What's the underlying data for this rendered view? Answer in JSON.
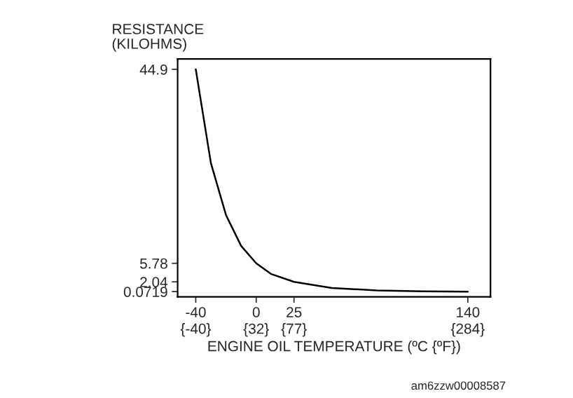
{
  "chart_data": {
    "type": "line",
    "ylabel": "RESISTANCE\n(KILOHMS)",
    "xlabel": "ENGINE OIL TEMPERATURE (ºC {ºF})",
    "x": [
      -40,
      -30,
      -20,
      -10,
      0,
      10,
      25,
      50,
      80,
      110,
      140
    ],
    "series": [
      {
        "color": "#000000",
        "values": [
          44.9,
          26,
          15.5,
          9.3,
          5.78,
          3.6,
          2.04,
          0.8,
          0.3,
          0.13,
          0.0719
        ]
      }
    ],
    "xlim": [
      -52,
      155
    ],
    "ylim": [
      -1,
      47
    ],
    "xticks": [
      -40,
      0,
      25,
      140
    ],
    "x2lim": [
      -61.6,
      311
    ],
    "x2ticks": [
      {
        "value": -40,
        "label": "{-40}"
      },
      {
        "value": 32,
        "label": "{32}"
      },
      {
        "value": 77,
        "label": "{77}"
      },
      {
        "value": 284,
        "label": "{284}"
      }
    ],
    "yticks": [
      44.9,
      5.78,
      2.04,
      0.0719
    ],
    "grid": false,
    "legend": false,
    "marker": "none",
    "line_style": "solid",
    "annotations": [
      "am6zzw00008587"
    ]
  }
}
